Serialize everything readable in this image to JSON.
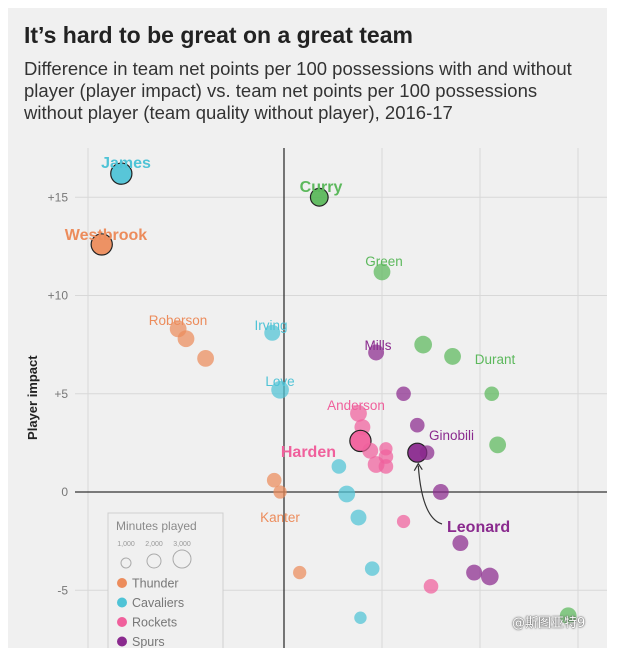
{
  "title": "It’s hard to be great on a great team",
  "subtitle": "Difference in team net points per 100 possessions with and without player (player impact) vs. team net points per 100 possessions without player (team quality without player), 2016-17",
  "watermark": "@斯图亚特9",
  "chart_data": {
    "type": "scatter",
    "xlabel": "",
    "ylabel": "Player impact",
    "ylim": [
      -6.8,
      17.5
    ],
    "xlim": [
      -11,
      16
    ],
    "y_ticks": [
      15,
      10,
      5,
      0,
      -5
    ],
    "y_tick_labels": [
      "+15",
      "+10",
      "+5",
      "0",
      "-5"
    ],
    "x_gridlines": [
      -10,
      0,
      5,
      10,
      15
    ],
    "grid": true,
    "colors": {
      "Thunder": "#ec8c5c",
      "Cavaliers": "#4fc3d6",
      "Rockets": "#f0609c",
      "Spurs": "#8a2a8e",
      "Warriors": "#5cb85c"
    },
    "legend": {
      "title": "Minutes played",
      "size_labels": [
        "1,000",
        "2,000",
        "3,000"
      ],
      "entries": [
        "Thunder",
        "Cavaliers",
        "Rockets",
        "Spurs"
      ],
      "position": "bottom-left"
    },
    "series": [
      {
        "name": "Thunder",
        "points": [
          {
            "x": -9.3,
            "y": 12.6,
            "size": 3,
            "label": "Westbrook",
            "highlight": true
          },
          {
            "x": -5.4,
            "y": 8.3,
            "size": 2
          },
          {
            "x": -5.0,
            "y": 7.8,
            "size": 2
          },
          {
            "x": -4.0,
            "y": 6.8,
            "size": 2
          },
          {
            "x": -0.5,
            "y": 0.6,
            "size": 1.5
          },
          {
            "x": -0.2,
            "y": 0.0,
            "size": 1.2
          },
          {
            "x": 0.8,
            "y": -4.1,
            "size": 1.2
          }
        ]
      },
      {
        "name": "Cavaliers",
        "points": [
          {
            "x": -8.3,
            "y": 16.2,
            "size": 3,
            "label": "James",
            "highlight": true
          },
          {
            "x": -0.6,
            "y": 8.1,
            "size": 1.8
          },
          {
            "x": -0.2,
            "y": 5.2,
            "size": 2.2
          },
          {
            "x": 2.8,
            "y": 1.3,
            "size": 1.5
          },
          {
            "x": 3.2,
            "y": -0.1,
            "size": 2
          },
          {
            "x": 3.8,
            "y": -1.3,
            "size": 1.8
          },
          {
            "x": 4.5,
            "y": -3.9,
            "size": 1.5
          },
          {
            "x": 3.9,
            "y": -6.4,
            "size": 1
          }
        ]
      },
      {
        "name": "Rockets",
        "points": [
          {
            "x": 3.8,
            "y": 4.0,
            "size": 2
          },
          {
            "x": 4.0,
            "y": 3.3,
            "size": 1.8
          },
          {
            "x": 3.9,
            "y": 2.6,
            "size": 3,
            "highlight": true
          },
          {
            "x": 4.4,
            "y": 2.1,
            "size": 1.8
          },
          {
            "x": 4.7,
            "y": 1.4,
            "size": 2
          },
          {
            "x": 5.2,
            "y": 1.3,
            "size": 1.5
          },
          {
            "x": 5.2,
            "y": 1.8,
            "size": 1.5
          },
          {
            "x": 5.2,
            "y": 2.2,
            "size": 1.2
          },
          {
            "x": 6.1,
            "y": -1.5,
            "size": 1.2
          },
          {
            "x": 7.5,
            "y": -4.8,
            "size": 1.5
          }
        ]
      },
      {
        "name": "Spurs",
        "points": [
          {
            "x": 4.7,
            "y": 7.1,
            "size": 1.8
          },
          {
            "x": 6.1,
            "y": 5.0,
            "size": 1.5
          },
          {
            "x": 6.8,
            "y": 3.4,
            "size": 1.5
          },
          {
            "x": 6.8,
            "y": 2.0,
            "size": 2.5,
            "label": "Leonard",
            "highlight": true
          },
          {
            "x": 7.3,
            "y": 2.0,
            "size": 1.5
          },
          {
            "x": 8.0,
            "y": 0.0,
            "size": 1.8
          },
          {
            "x": 9.0,
            "y": -2.6,
            "size": 1.8
          },
          {
            "x": 9.7,
            "y": -4.1,
            "size": 1.8
          },
          {
            "x": 10.5,
            "y": -4.3,
            "size": 2.2
          }
        ]
      },
      {
        "name": "Warriors",
        "points": [
          {
            "x": 1.8,
            "y": 15.0,
            "size": 2.2,
            "label": "Curry",
            "highlight": true
          },
          {
            "x": 5.0,
            "y": 11.2,
            "size": 2
          },
          {
            "x": 7.1,
            "y": 7.5,
            "size": 2.2
          },
          {
            "x": 8.6,
            "y": 6.9,
            "size": 2
          },
          {
            "x": 10.6,
            "y": 5.0,
            "size": 1.5
          },
          {
            "x": 10.9,
            "y": 2.4,
            "size": 2
          },
          {
            "x": 14.5,
            "y": -6.3,
            "size": 2
          }
        ]
      }
    ],
    "annotations": [
      {
        "text": "James",
        "series": "Cavaliers",
        "bold": true
      },
      {
        "text": "Westbrook",
        "series": "Thunder",
        "bold": true
      },
      {
        "text": "Curry",
        "series": "Warriors",
        "bold": true
      },
      {
        "text": "Green",
        "series": "Warriors",
        "bold": false
      },
      {
        "text": "Roberson",
        "series": "Thunder",
        "bold": false
      },
      {
        "text": "Irving",
        "series": "Cavaliers",
        "bold": false
      },
      {
        "text": "Mills",
        "series": "Spurs",
        "bold": false
      },
      {
        "text": "Durant",
        "series": "Warriors",
        "bold": false
      },
      {
        "text": "Love",
        "series": "Cavaliers",
        "bold": false
      },
      {
        "text": "Anderson",
        "series": "Rockets",
        "bold": false
      },
      {
        "text": "Ginobili",
        "series": "Spurs",
        "bold": false
      },
      {
        "text": "Harden",
        "series": "Rockets",
        "bold": true
      },
      {
        "text": "Leonard",
        "series": "Spurs",
        "bold": true
      },
      {
        "text": "Kanter",
        "series": "Thunder",
        "bold": false
      }
    ]
  }
}
